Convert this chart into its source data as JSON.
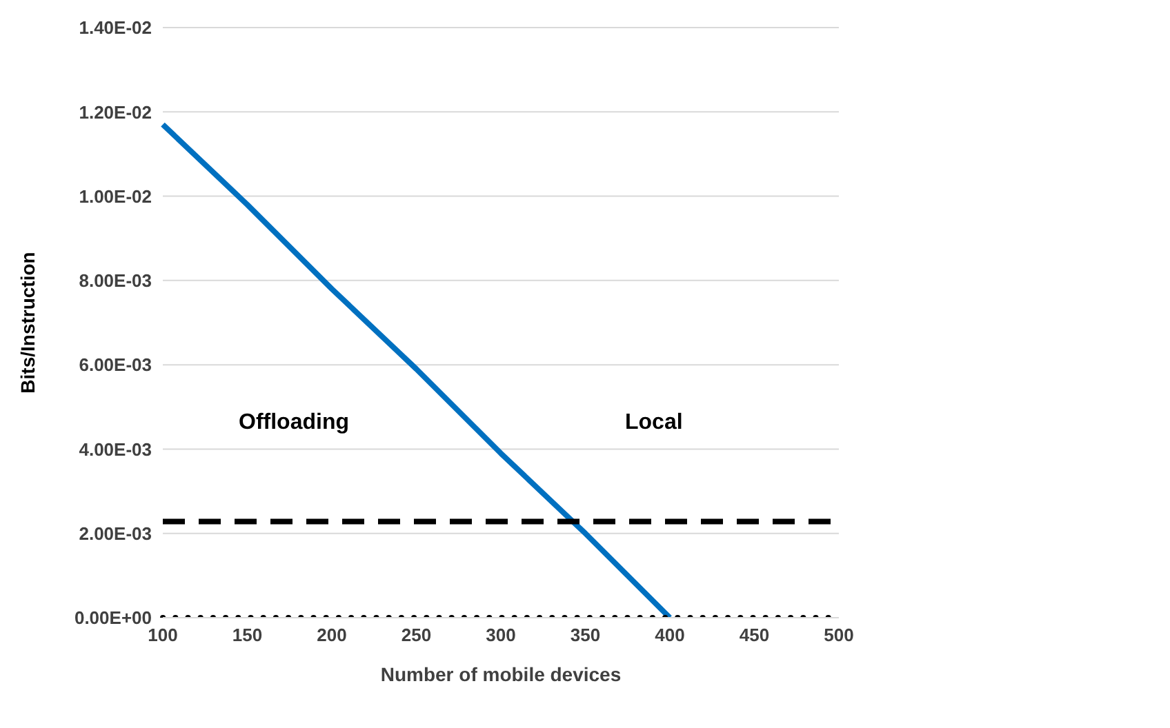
{
  "chart_data": {
    "type": "line",
    "xlabel": "Number of mobile devices",
    "ylabel": "Bits/Instruction",
    "categories": [
      "100",
      "150",
      "200",
      "250",
      "300",
      "350",
      "400",
      "450",
      "500"
    ],
    "series": [
      {
        "color": "#0070c0",
        "line_style": "solid",
        "values": [
          0.0117,
          0.0098,
          0.0078,
          0.0059,
          0.0039,
          0.002,
          0,
          null,
          null
        ]
      },
      {
        "color": "#000000",
        "line_style": "dotted",
        "values": [
          0,
          0,
          0,
          0,
          0,
          0,
          0,
          0,
          0
        ]
      },
      {
        "color": "#000000",
        "line_style": "dashed",
        "values": [
          0.00228,
          0.00228,
          0.00228,
          0.00228,
          0.00228,
          0.00228,
          0.00228,
          0.00228,
          0.00228
        ]
      }
    ],
    "ylim": [
      0,
      0.014
    ],
    "yticks": [
      {
        "value": 0,
        "label": "0.00E+00"
      },
      {
        "value": 0.002,
        "label": "2.00E-03"
      },
      {
        "value": 0.004,
        "label": "4.00E-03"
      },
      {
        "value": 0.006,
        "label": "6.00E-03"
      },
      {
        "value": 0.008,
        "label": "8.00E-03"
      },
      {
        "value": 0.01,
        "label": "1.00E-02"
      },
      {
        "value": 0.012,
        "label": "1.20E-02"
      },
      {
        "value": 0.014,
        "label": "1.40E-02"
      }
    ],
    "grid": "y",
    "marker": "none",
    "annotations": [
      "Offloading",
      "Local"
    ]
  }
}
